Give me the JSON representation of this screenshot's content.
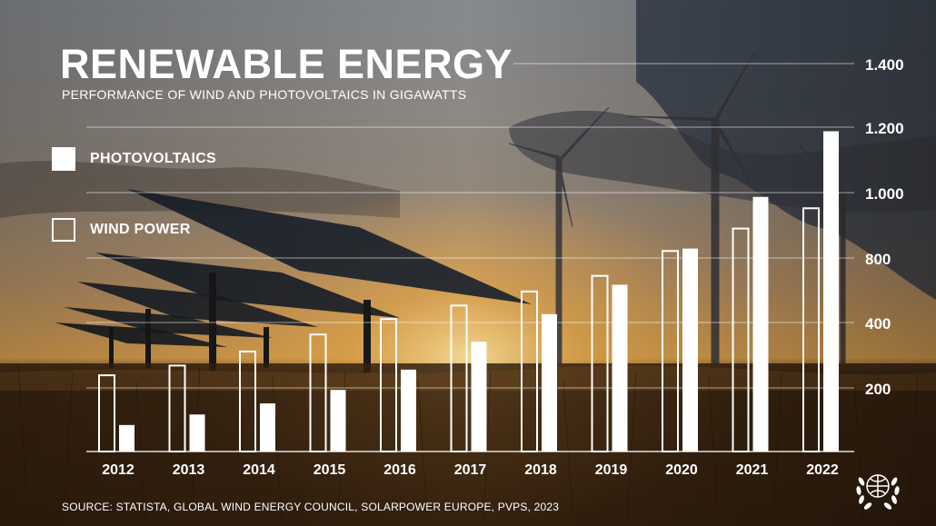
{
  "header": {
    "title": "RENEWABLE ENERGY",
    "subtitle": "PERFORMANCE OF WIND AND PHOTOVOLTAICS IN GIGAWATTS"
  },
  "legend": [
    {
      "label": "PHOTOVOLTAICS",
      "style": "filled"
    },
    {
      "label": "WIND POWER",
      "style": "outline"
    }
  ],
  "footer": {
    "source": "SOURCE: STATISTA, GLOBAL WIND ENERGY COUNCIL, SOLARPOWER EUROPE, PVPS, 2023"
  },
  "colors": {
    "text": "#ffffff",
    "bar": "#ffffff",
    "sky_top": "#8a8f94",
    "sunset": "#f0b352",
    "field": "#3a2410"
  },
  "emblem_icon": "un-laurel-globe-icon",
  "chart_data": {
    "type": "bar",
    "categories": [
      "2012",
      "2013",
      "2014",
      "2015",
      "2016",
      "2017",
      "2018",
      "2019",
      "2020",
      "2021",
      "2022"
    ],
    "series": [
      {
        "name": "WIND POWER",
        "style": "outline",
        "values": [
          282,
          318,
          370,
          433,
          490,
          540,
          592,
          650,
          742,
          825,
          900
        ]
      },
      {
        "name": "PHOTOVOLTAICS",
        "style": "filled",
        "values": [
          98,
          137,
          178,
          228,
          303,
          406,
          508,
          617,
          751,
          942,
          1185
        ]
      }
    ],
    "ytick_labels": [
      "200",
      "400",
      "800",
      "1.000",
      "1.200",
      "1.400"
    ],
    "ylim": [
      0,
      1200
    ],
    "ylabel": "",
    "xlabel": "",
    "grid": true,
    "legend_position": "left"
  }
}
